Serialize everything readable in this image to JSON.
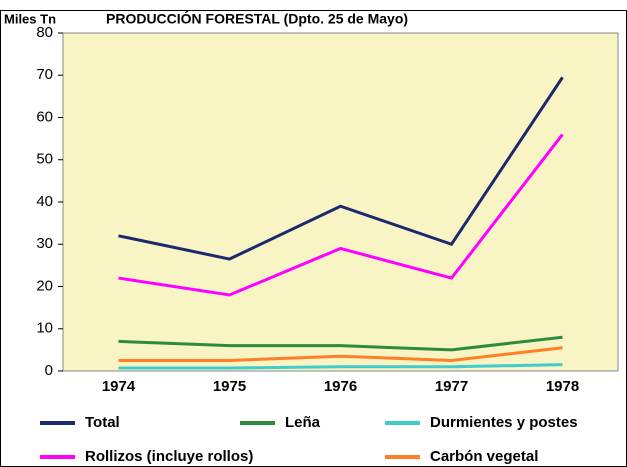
{
  "chart_data": {
    "type": "line",
    "title": "PRODUCCIÓN FORESTAL (Dpto. 25 de Mayo)",
    "ylabel": "Miles Tn",
    "categories": [
      "1974",
      "1975",
      "1976",
      "1977",
      "1978"
    ],
    "series": [
      {
        "name": "Total",
        "color": "#1b2a6e",
        "values": [
          32,
          26.5,
          39,
          30,
          69.5
        ]
      },
      {
        "name": "Leña",
        "color": "#2e8b3e",
        "values": [
          7,
          6,
          6,
          5,
          8
        ]
      },
      {
        "name": "Durmientes y postes",
        "color": "#40cccc",
        "values": [
          0.7,
          0.7,
          1,
          1,
          1.5
        ]
      },
      {
        "name": "Rollizos (incluye rollos)",
        "color": "#ff00ff",
        "values": [
          22,
          18,
          29,
          22,
          56
        ]
      },
      {
        "name": "Carbón vegetal",
        "color": "#ff7f27",
        "values": [
          2.5,
          2.5,
          3.5,
          2.5,
          5.5
        ]
      }
    ],
    "ylim": [
      0,
      80
    ],
    "yticks": [
      0,
      10,
      20,
      30,
      40,
      50,
      60,
      70,
      80
    ],
    "grid": false
  }
}
